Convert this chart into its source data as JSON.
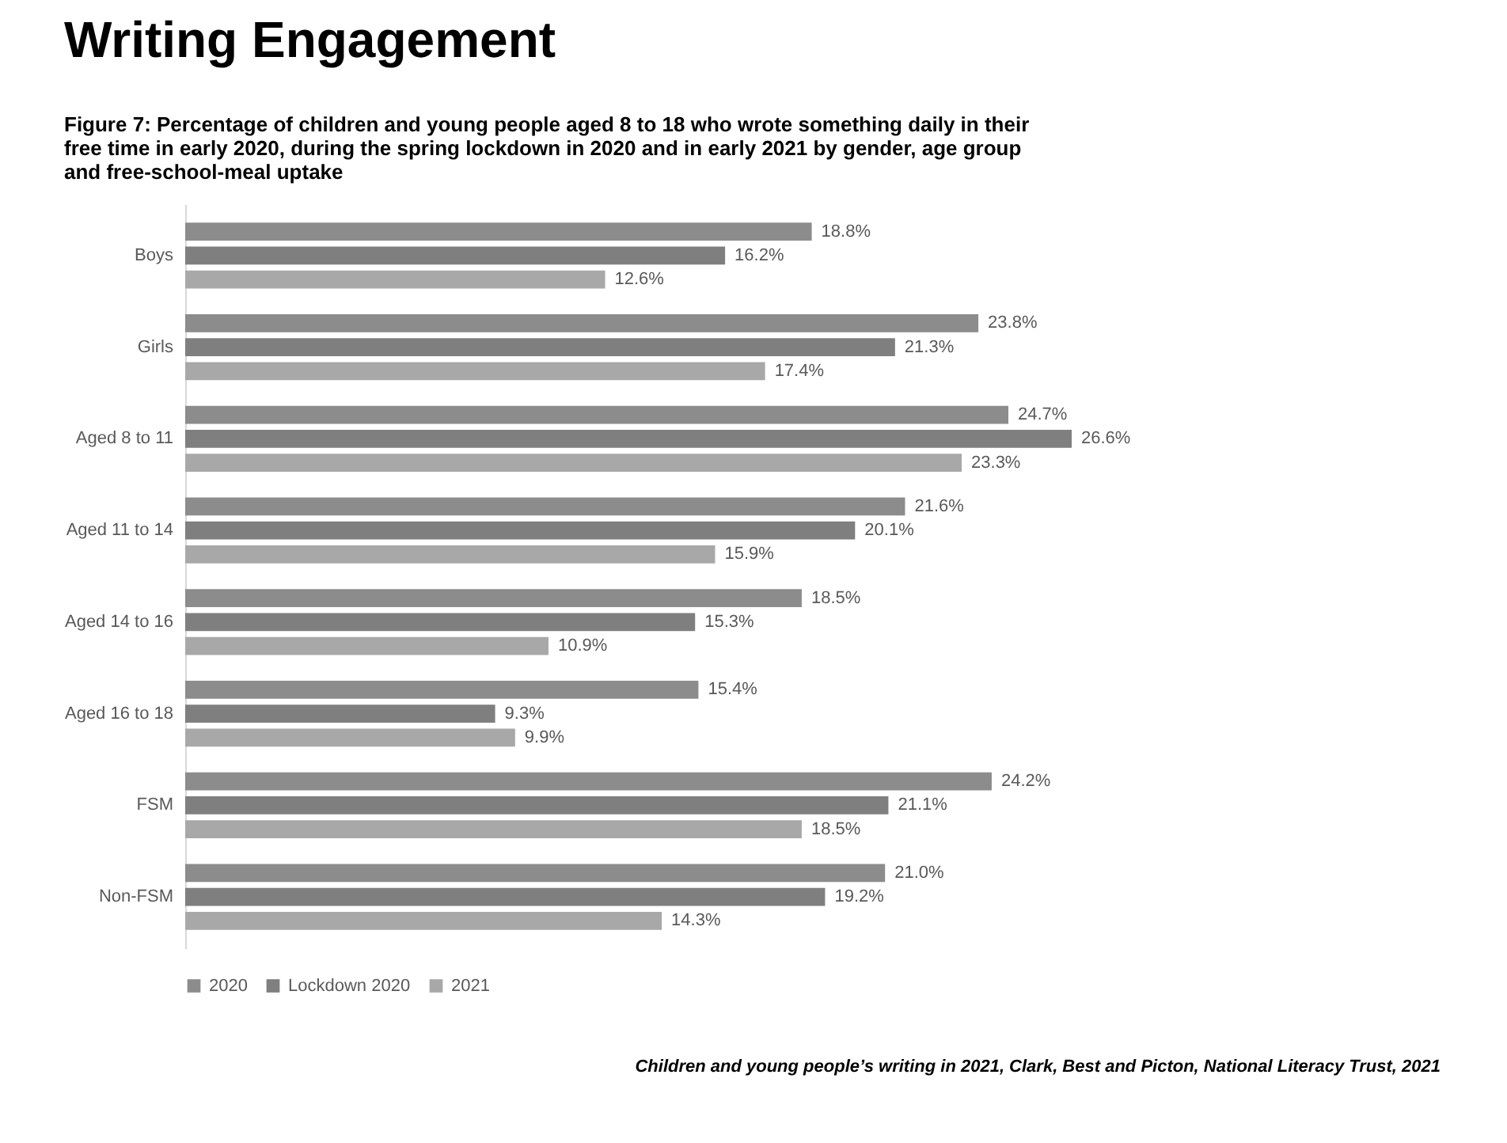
{
  "chart_data": {
    "type": "bar",
    "orientation": "horizontal",
    "title": "Writing Engagement",
    "subtitle": "Figure 7: Percentage of children and young people aged 8 to 18 who wrote something daily in their free time in early 2020, during the spring lockdown in 2020 and in early 2021 by gender, age group and free-school-meal uptake",
    "categories": [
      "Boys",
      "Girls",
      "Aged 8 to 11",
      "Aged 11 to 14",
      "Aged 14 to 16",
      "Aged 16 to 18",
      "FSM",
      "Non-FSM"
    ],
    "series": [
      {
        "name": "2020",
        "color": "#8c8c8c",
        "values": [
          18.8,
          23.8,
          24.7,
          21.6,
          18.5,
          15.4,
          24.2,
          21.0
        ],
        "value_labels": [
          "18.8%",
          "23.8%",
          "24.7%",
          "21.6%",
          "18.5%",
          "15.4%",
          "24.2%",
          "21.0%"
        ]
      },
      {
        "name": "Lockdown 2020",
        "color": "#7f7f7f",
        "values": [
          16.2,
          21.3,
          26.6,
          20.1,
          15.3,
          9.3,
          21.1,
          19.2
        ],
        "value_labels": [
          "16.2%",
          "21.3%",
          "26.6%",
          "20.1%",
          "15.3%",
          "9.3%",
          "21.1%",
          "19.2%"
        ]
      },
      {
        "name": "2021",
        "color": "#a8a8a8",
        "values": [
          12.6,
          17.4,
          23.3,
          15.9,
          10.9,
          9.9,
          18.5,
          14.3
        ],
        "value_labels": [
          "12.6%",
          "17.4%",
          "23.3%",
          "15.9%",
          "10.9%",
          "9.9%",
          "18.5%",
          "14.3%"
        ]
      }
    ],
    "legend": "bottom",
    "annotations": [
      "Children and young people’s writing in 2021, Clark, Best and Picton, National Literacy Trust, 2021"
    ]
  }
}
